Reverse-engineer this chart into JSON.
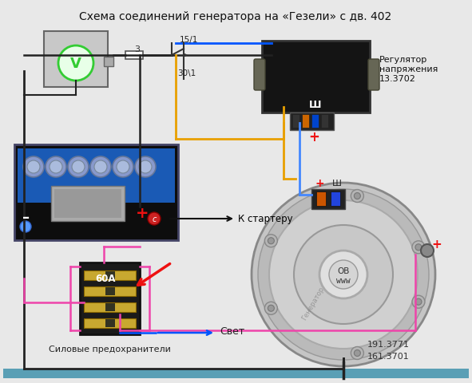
{
  "title": "Схема соединений генератора на «Гезели» с дв. 402",
  "title_fontsize": 10,
  "bg_color": "#e8e8e8",
  "fig_width": 5.91,
  "fig_height": 4.81,
  "dpi": 100,
  "bottom_bar_color": "#5a9fb5",
  "text_regulator": "Регулятор\nнапряжения\n13.3702",
  "text_starter": "К стартеру",
  "text_light": "Свет",
  "text_fuse": "Силовые предохранители",
  "text_60a": "60А",
  "label_15_1": "15/1",
  "label_30_1": "30\\1",
  "label_3": "3",
  "label_plus": "+",
  "label_minus": "–",
  "label_sh": "Ш",
  "label_c": "с",
  "label_ob": "ОВ",
  "label_www": "www",
  "label_191": "191.3771",
  "label_161": "161.3701",
  "colors": {
    "blue_line": "#0055ff",
    "blue_line2": "#4488ff",
    "orange_line": "#e8a000",
    "pink_line": "#ee44aa",
    "dark_line": "#222222",
    "red": "#ee1111",
    "green_circle": "#33cc33",
    "battery_bg": "#111111",
    "battery_blue": "#1a5ab5",
    "fuse_dark": "#1a1a1a",
    "regulator_dark": "#1a1a1a",
    "alt_outer": "#b0b0b0",
    "alt_inner": "#a0a0a0",
    "alt_ring": "#909090",
    "white": "#ffffff",
    "gray_light": "#cccccc",
    "gray_med": "#999999",
    "gold": "#c8a830",
    "metal_gray": "#808080"
  }
}
